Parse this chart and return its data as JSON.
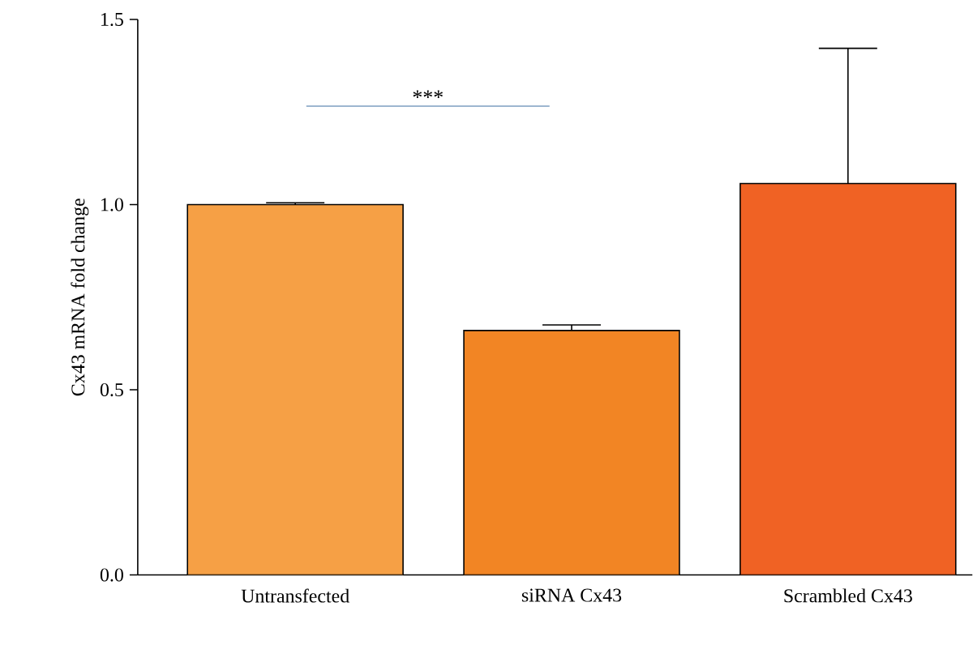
{
  "chart_data": {
    "type": "bar",
    "ylabel": "Cx43 mRNA fold change",
    "categories": [
      "Untransfected",
      "siRNA Cx43",
      "Scrambled Cx43"
    ],
    "values": [
      1.0,
      0.66,
      1.057
    ],
    "errors": [
      0.005,
      0.015,
      0.365
    ],
    "colors": [
      "#f6a045",
      "#f28524",
      "#f06224"
    ],
    "ylim": [
      0,
      1.5
    ],
    "yticks": [
      {
        "value": 0,
        "label": "0.0"
      },
      {
        "value": 0.5,
        "label": "0.5"
      },
      {
        "value": 1.0,
        "label": "1.0"
      },
      {
        "value": 1.5,
        "label": "1.5"
      }
    ],
    "annotations": [
      "***"
    ]
  }
}
